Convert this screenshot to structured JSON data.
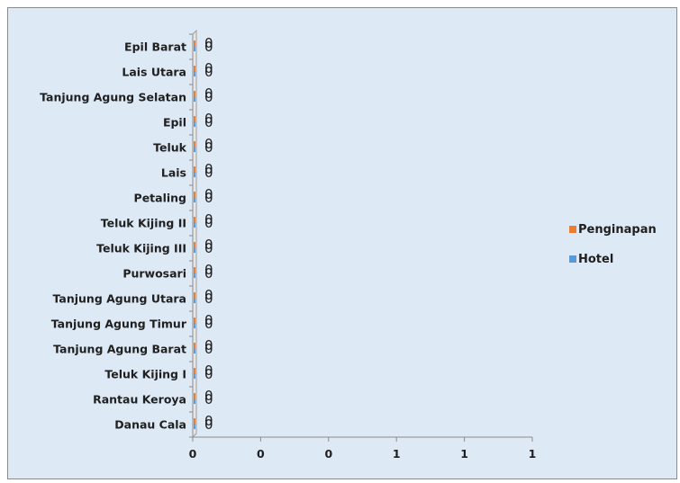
{
  "chart_data": {
    "type": "bar",
    "orientation": "horizontal",
    "categories": [
      "Epil Barat",
      "Lais Utara",
      "Tanjung Agung Selatan",
      "Epil",
      "Teluk",
      "Lais",
      "Petaling",
      "Teluk Kijing II",
      "Teluk Kijing III",
      "Purwosari",
      "Tanjung Agung Utara",
      "Tanjung Agung Timur",
      "Tanjung Agung Barat",
      "Teluk Kijing I",
      "Rantau Keroya",
      "Danau Cala"
    ],
    "series": [
      {
        "name": "Penginapan",
        "color": "#ed7d31",
        "values": [
          0,
          0,
          0,
          0,
          0,
          0,
          0,
          0,
          0,
          0,
          0,
          0,
          0,
          0,
          0,
          0
        ]
      },
      {
        "name": "Hotel",
        "color": "#5b9bd5",
        "values": [
          0,
          0,
          0,
          0,
          0,
          0,
          0,
          0,
          0,
          0,
          0,
          0,
          0,
          0,
          0,
          0
        ]
      }
    ],
    "data_label_text": "0",
    "x_tick_labels": [
      "0",
      "0",
      "0",
      "1",
      "1",
      "1"
    ],
    "xlim": [
      0,
      1
    ],
    "legend_position": "right",
    "gridlines": false
  }
}
